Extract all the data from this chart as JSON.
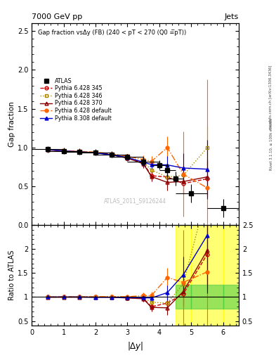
{
  "title_top": "7000 GeV pp",
  "title_right": "Jets",
  "plot_title": "Gap fraction vsΔy (FB) (240 < pT < 270 (Q0 =̅pT))",
  "watermark": "ATLAS_2011_S9126244",
  "right_label": "Rivet 3.1.10, ≥ 100k events",
  "right_label2": "mcplots.cern.ch [arXiv:1306.3436]",
  "atlas_x": [
    0.5,
    1.0,
    1.5,
    2.0,
    2.5,
    3.0,
    3.5,
    4.0,
    4.25,
    4.5,
    5.0,
    6.0
  ],
  "atlas_y": [
    0.975,
    0.955,
    0.945,
    0.935,
    0.91,
    0.88,
    0.82,
    0.775,
    0.71,
    0.595,
    0.41,
    0.22
  ],
  "atlas_yerr": [
    0.04,
    0.04,
    0.04,
    0.04,
    0.04,
    0.04,
    0.06,
    0.06,
    0.08,
    0.09,
    0.12,
    0.12
  ],
  "atlas_xerr": [
    0.5,
    0.5,
    0.5,
    0.5,
    0.5,
    0.5,
    0.5,
    0.25,
    0.25,
    0.25,
    0.5,
    0.5
  ],
  "py6_345_x": [
    0.5,
    1.0,
    1.5,
    2.0,
    2.5,
    3.0,
    3.5,
    3.75,
    4.25,
    4.75,
    5.5
  ],
  "py6_345_y": [
    0.975,
    0.955,
    0.945,
    0.935,
    0.91,
    0.865,
    0.8,
    0.635,
    0.62,
    0.535,
    0.595
  ],
  "py6_345_yerr": [
    0.02,
    0.02,
    0.02,
    0.02,
    0.025,
    0.035,
    0.055,
    0.065,
    0.11,
    0.14,
    0.23
  ],
  "py6_346_x": [
    0.5,
    1.0,
    1.5,
    2.0,
    2.5,
    3.0,
    3.5,
    3.75,
    4.25,
    4.75,
    5.5
  ],
  "py6_346_y": [
    0.975,
    0.955,
    0.945,
    0.935,
    0.91,
    0.875,
    0.815,
    0.71,
    0.62,
    0.64,
    0.995
  ],
  "py6_346_yerr": [
    0.02,
    0.02,
    0.02,
    0.02,
    0.025,
    0.035,
    0.055,
    0.065,
    0.11,
    0.14,
    0.28
  ],
  "py6_370_x": [
    0.5,
    1.0,
    1.5,
    2.0,
    2.5,
    3.0,
    3.5,
    3.75,
    4.25,
    4.75,
    5.5
  ],
  "py6_370_y": [
    0.97,
    0.952,
    0.942,
    0.932,
    0.905,
    0.862,
    0.79,
    0.625,
    0.55,
    0.56,
    0.62
  ],
  "py6_370_yerr": [
    0.02,
    0.02,
    0.02,
    0.02,
    0.025,
    0.035,
    0.055,
    0.065,
    0.11,
    0.14,
    0.23
  ],
  "py6_def_x": [
    0.5,
    1.0,
    1.5,
    2.0,
    2.5,
    3.0,
    3.5,
    3.75,
    4.25,
    4.75,
    5.5
  ],
  "py6_def_y": [
    0.978,
    0.96,
    0.95,
    0.94,
    0.92,
    0.885,
    0.845,
    0.82,
    1.0,
    0.655,
    0.48
  ],
  "py6_def_yerr": [
    0.02,
    0.02,
    0.02,
    0.02,
    0.025,
    0.035,
    0.055,
    0.065,
    0.14,
    0.55,
    1.4
  ],
  "py8_def_x": [
    0.5,
    1.0,
    1.5,
    2.0,
    2.5,
    3.0,
    3.5,
    3.75,
    4.25,
    4.75,
    5.5
  ],
  "py8_def_y": [
    0.975,
    0.955,
    0.945,
    0.93,
    0.905,
    0.87,
    0.81,
    0.78,
    0.775,
    0.735,
    0.72
  ],
  "py8_def_yerr": [
    0.02,
    0.02,
    0.02,
    0.02,
    0.025,
    0.035,
    0.055,
    0.065,
    0.11,
    0.19,
    0.38
  ],
  "colors": {
    "atlas": "#000000",
    "py6_345": "#cc0000",
    "py6_346": "#aa8800",
    "py6_370": "#880000",
    "py6_def": "#ff6600",
    "py8_def": "#0000cc"
  },
  "main_ylim": [
    0.0,
    2.6
  ],
  "ratio_ylim": [
    0.4,
    2.5
  ],
  "xlim": [
    0.0,
    6.49
  ],
  "xticks": [
    0,
    1,
    2,
    3,
    4,
    5,
    6
  ]
}
